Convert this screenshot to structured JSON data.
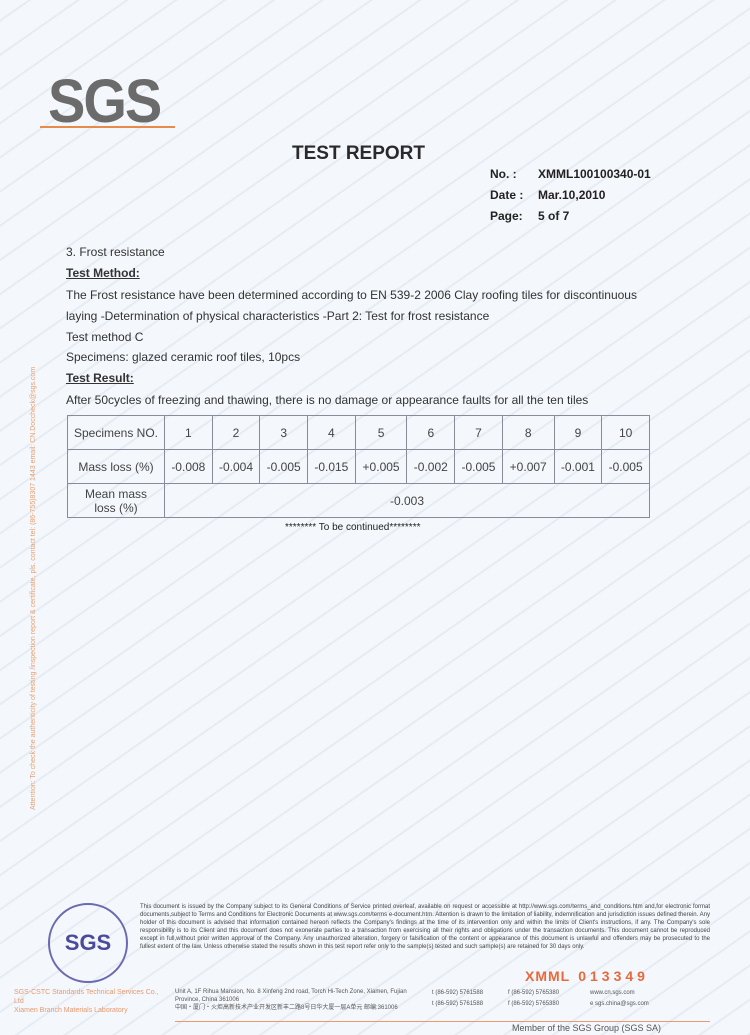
{
  "logo": "SGS",
  "title": "TEST REPORT",
  "meta": {
    "no_label": "No. :",
    "no": "XMML100100340-01",
    "date_label": "Date :",
    "date": "Mar.10,2010",
    "page_label": "Page:",
    "page": "5 of 7"
  },
  "section": "3. Frost resistance",
  "method_heading": "Test Method:",
  "method_text_1": "The Frost resistance have been determined according to EN 539-2 2006 Clay roofing tiles for discontinuous",
  "method_text_2": "laying -Determination of physical characteristics -Part 2: Test for frost resistance",
  "method_c": "Test method C",
  "specimens": "Specimens: glazed ceramic roof tiles, 10pcs",
  "result_heading": "Test Result:",
  "result_text": "After 50cycles of freezing and thawing, there is no damage or appearance faults for all the ten tiles",
  "table": {
    "header_label": "Specimens NO.",
    "specimens": [
      "1",
      "2",
      "3",
      "4",
      "5",
      "6",
      "7",
      "8",
      "9",
      "10"
    ],
    "mass_label": "Mass loss (%)",
    "mass_loss": [
      "-0.008",
      "-0.004",
      "-0.005",
      "-0.015",
      "+0.005",
      "-0.002",
      "-0.005",
      "+0.007",
      "-0.001",
      "-0.005"
    ],
    "mean_label": "Mean mass loss (%)",
    "mean": "-0.003"
  },
  "continued": "******** To be continued********",
  "side_note": "Attention: To check the authenticity of testing /inspection report & certificate, pls. contact tel: (86-755)8307 1443 email: CN.Doccheck@sgs.com",
  "disclaimer": "This document is issued by the Company subject to its General Conditions of Service printed overleaf, available on request or accessible at http://www.sgs.com/terms_and_conditions.htm and,for electronic format documents,subject to Terms and Conditions for Electronic Documents at www.sgs.com/terms e-document.htm. Attention is drawn to the limitation of liability, indemnification and jurisdiction issues defined therein. Any holder of this document is advised that information contained hereon reflects the Company's findings at the time of its intervention only and within the limits of Client's instructions, if any. The Company's sole responsibility is to its Client and this document does not exonerate parties to a transaction from exercising all their rights and obligations under the transaction documents. This document cannot be reproduced except in full,without prior written approval of the Company. Any unauthorized alteration, forgery or falsification of the content or appearance of this document is unlawful and offenders may be prosecuted to the fullest extent of the law. Unless otherwise stated the results shown in this test report refer only to the sample(s) tested and such sample(s) are retained for 30 days only.",
  "stamp": "SGS",
  "serial_prefix": "XMML",
  "serial_number": "013349",
  "footer": {
    "company_1": "SGS-CSTC Standards Technical Services Co., Ltd",
    "company_2": "Xiamen Branch Materials Laboratory",
    "address_en": "Unit A, 1F Rihua Mansion, No. 8 Xinfeng 2nd road, Torch Hi-Tech Zone, Xiamen, Fujian Province, China 361006",
    "address_cn": "中国・厦门・火炬高新技术产业开发区新丰二路8号日华大厦一层A单元 邮编:361006",
    "tel_1": "t (86-592) 5761588",
    "tel_2": "t (86-592) 5761588",
    "fax_1": "f (86-592) 5765380",
    "fax_2": "f (86-592) 5765380",
    "web": "www.cn.sgs.com",
    "email": "e sgs.china@sgs.com",
    "member": "Member of the SGS Group (SGS SA)"
  }
}
